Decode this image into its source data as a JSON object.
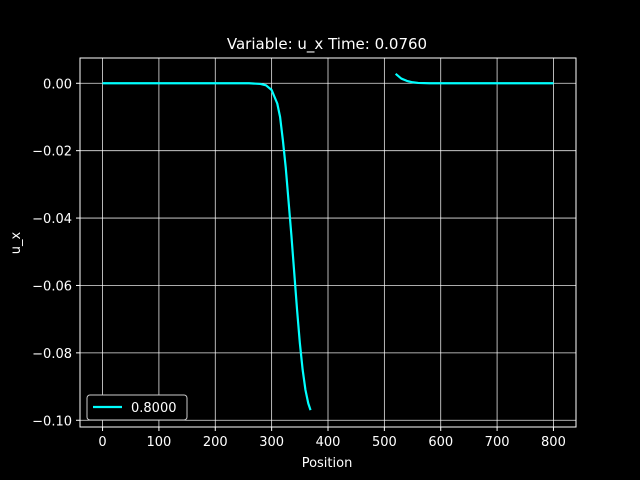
{
  "chart_data": {
    "type": "line",
    "title": "Variable: u_x Time: 0.0760",
    "xlabel": "Position",
    "ylabel": "u_x",
    "xlim": [
      -40,
      840
    ],
    "ylim": [
      -0.102,
      0.0075
    ],
    "xticks": [
      0,
      100,
      200,
      300,
      400,
      500,
      600,
      700,
      800
    ],
    "yticks": [
      0.0,
      -0.02,
      -0.04,
      -0.06,
      -0.08,
      -0.1
    ],
    "xtick_labels": [
      "0",
      "100",
      "200",
      "300",
      "400",
      "500",
      "600",
      "700",
      "800"
    ],
    "ytick_labels": [
      "0.00",
      "−0.02",
      "−0.04",
      "−0.06",
      "−0.08",
      "−0.10"
    ],
    "grid": true,
    "legend_position": "lower-left",
    "background": "#000000",
    "foreground": "#ffffff",
    "series": [
      {
        "name": "0.8000",
        "color": "#00ffff",
        "segments": [
          [
            [
              0,
              0.0
            ],
            [
              100,
              0.0
            ],
            [
              200,
              0.0
            ],
            [
              260,
              0.0
            ],
            [
              280,
              -0.0002
            ],
            [
              290,
              -0.0006
            ],
            [
              300,
              -0.002
            ],
            [
              310,
              -0.006
            ],
            [
              315,
              -0.01
            ],
            [
              320,
              -0.017
            ],
            [
              325,
              -0.025
            ],
            [
              330,
              -0.035
            ],
            [
              335,
              -0.045
            ],
            [
              340,
              -0.056
            ],
            [
              345,
              -0.067
            ],
            [
              350,
              -0.077
            ],
            [
              355,
              -0.085
            ],
            [
              360,
              -0.091
            ],
            [
              365,
              -0.095
            ],
            [
              369,
              -0.097
            ]
          ],
          [
            [
              520,
              0.0028
            ],
            [
              525,
              0.0021
            ],
            [
              530,
              0.0014
            ],
            [
              540,
              0.0007
            ],
            [
              550,
              0.0003
            ],
            [
              560,
              0.0001
            ],
            [
              580,
              0.0
            ],
            [
              700,
              0.0
            ],
            [
              800,
              0.0
            ]
          ]
        ]
      }
    ]
  }
}
